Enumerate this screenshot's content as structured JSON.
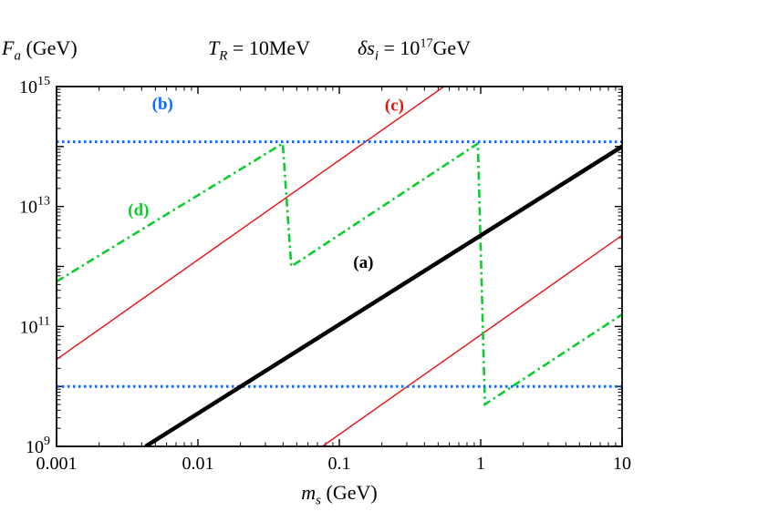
{
  "labels": {
    "y": {
      "var": "F",
      "sub": "a",
      "unit": " (GeV)"
    },
    "x": {
      "var": "m",
      "sub": "s",
      "unit": " (GeV)"
    },
    "title": {
      "t_var": "T",
      "t_sub": "R",
      "t_rest": " = 10MeV",
      "d_var": "δs",
      "d_sub": "i",
      "d_rest": " = 10",
      "d_exp": "17",
      "d_unit": "GeV"
    }
  },
  "chart_data": {
    "type": "line",
    "title": "T_R = 10MeV ; δs_i = 10^17 GeV",
    "xlabel": "m_s (GeV)",
    "ylabel": "F_a (GeV)",
    "x_scale": "log",
    "y_scale": "log",
    "xlim_log10": [
      -3,
      1
    ],
    "ylim_log10": [
      9,
      15
    ],
    "grid": false,
    "legend": "none (curves labeled inline)",
    "x_ticks": [
      {
        "label": "0.001",
        "log10": -3
      },
      {
        "label": "0.01",
        "log10": -2
      },
      {
        "label": "0.1",
        "log10": -1
      },
      {
        "label": "1",
        "log10": 0
      },
      {
        "label": "10",
        "log10": 1
      }
    ],
    "y_ticks": [
      {
        "mantissa": "10",
        "exponent": "15",
        "log10": 15
      },
      {
        "mantissa": "10",
        "exponent": "13",
        "log10": 13
      },
      {
        "mantissa": "10",
        "exponent": "11",
        "log10": 11
      },
      {
        "mantissa": "10",
        "exponent": "9",
        "log10": 9
      }
    ],
    "series": [
      {
        "name": "(c) upper branch",
        "color": "#ee1010",
        "style": "solid",
        "width": 1.4,
        "points_log10": [
          [
            -3,
            10.45
          ],
          [
            -0.26,
            15.0
          ]
        ]
      },
      {
        "name": "(c) lower branch",
        "color": "#ee1010",
        "style": "solid",
        "width": 1.4,
        "points_log10": [
          [
            -1.12,
            9.0
          ],
          [
            1.0,
            12.52
          ]
        ]
      },
      {
        "name": "(d)",
        "color": "#0ccc2e",
        "style": "dashdot",
        "width": 2.6,
        "points_log10": [
          [
            -3,
            11.75
          ],
          [
            -1.4,
            14.05
          ],
          [
            -1.34,
            12.0
          ],
          [
            -0.02,
            14.05
          ],
          [
            0.03,
            9.7
          ],
          [
            1.0,
            11.2
          ]
        ]
      },
      {
        "name": "(b) upper bound",
        "color": "#0a6cff",
        "style": "dotted",
        "width": 3,
        "points_log10": [
          [
            -3,
            14.08
          ],
          [
            1,
            14.08
          ]
        ]
      },
      {
        "name": "(b) lower bound",
        "color": "#0a6cff",
        "style": "dotted",
        "width": 3,
        "points_log10": [
          [
            -3,
            10.0
          ],
          [
            1,
            10.0
          ]
        ]
      },
      {
        "name": "(a)",
        "color": "#000000",
        "style": "solid",
        "width": 4.5,
        "points_log10": [
          [
            -2.37,
            9.0
          ],
          [
            1.0,
            14.0
          ]
        ]
      }
    ],
    "curve_labels": [
      {
        "text": "(a)",
        "color": "#000000",
        "x_log10": -0.83,
        "y_log10": 11.98
      },
      {
        "text": "(b)",
        "color": "#0a6cff",
        "x_log10": -2.25,
        "y_log10": 14.62
      },
      {
        "text": "(c)",
        "color": "#ee1010",
        "x_log10": -0.61,
        "y_log10": 14.6
      },
      {
        "text": "(d)",
        "color": "#0ccc2e",
        "x_log10": -2.42,
        "y_log10": 12.85
      }
    ]
  }
}
